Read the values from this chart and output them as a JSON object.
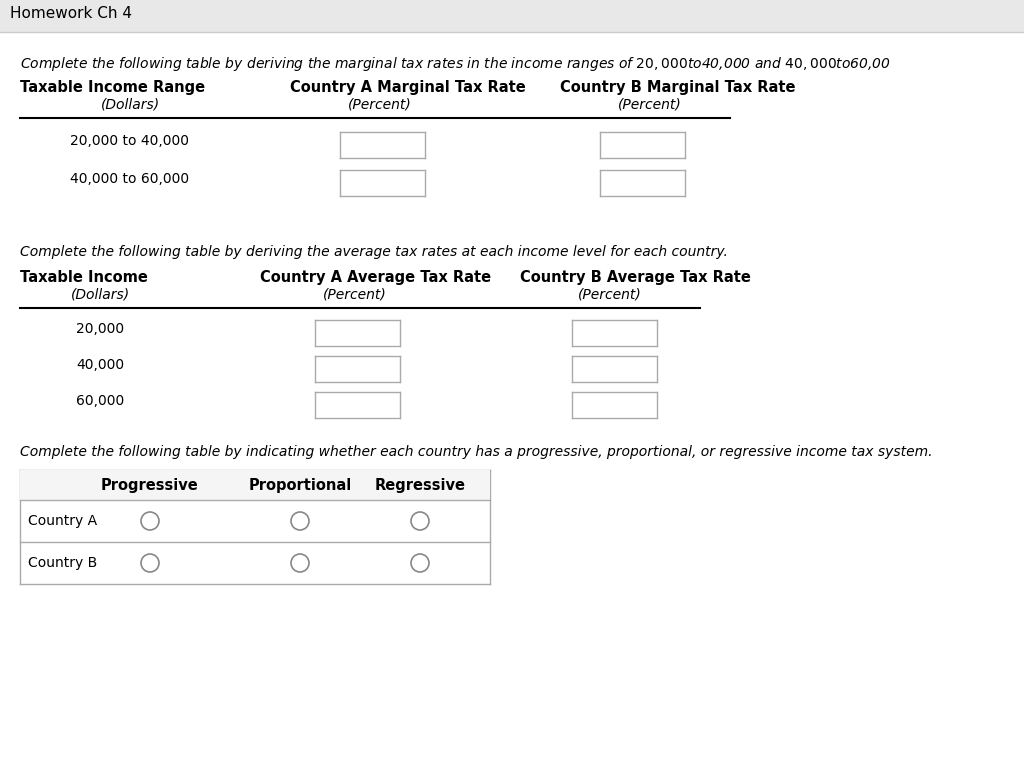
{
  "title_bar_text": "Homework Ch 4",
  "title_bar_bg": "#e8e8e8",
  "bg_color": "#ffffff",
  "text_color": "#000000",
  "instruction1": "Complete the following table by deriving the marginal tax rates in the income ranges of $20,000 to $40,000 and $40,000 to $60,00",
  "instruction2": "Complete the following table by deriving the average tax rates at each income level for each country.",
  "instruction3": "Complete the following table by indicating whether each country has a progressive, proportional, or regressive income tax system.",
  "table1": {
    "col_headers_line1": [
      "Taxable Income Range",
      "Country A Marginal Tax Rate",
      "Country B Marginal Tax Rate"
    ],
    "col_headers_line2": [
      "(Dollars)",
      "(Percent)",
      "(Percent)"
    ],
    "rows": [
      "20,000 to 40,000",
      "40,000 to 60,000"
    ]
  },
  "table2": {
    "col_headers_line1": [
      "Taxable Income",
      "Country A Average Tax Rate",
      "Country B Average Tax Rate"
    ],
    "col_headers_line2": [
      "(Dollars)",
      "(Percent)",
      "(Percent)"
    ],
    "rows": [
      "20,000",
      "40,000",
      "60,000"
    ]
  },
  "table3": {
    "col_headers": [
      "",
      "Progressive",
      "Proportional",
      "Regressive"
    ],
    "rows": [
      "Country A",
      "Country B"
    ]
  },
  "input_box_color": "#ffffff",
  "input_box_border": "#aaaaaa",
  "line_color": "#000000",
  "separator_color": "#aaaaaa"
}
